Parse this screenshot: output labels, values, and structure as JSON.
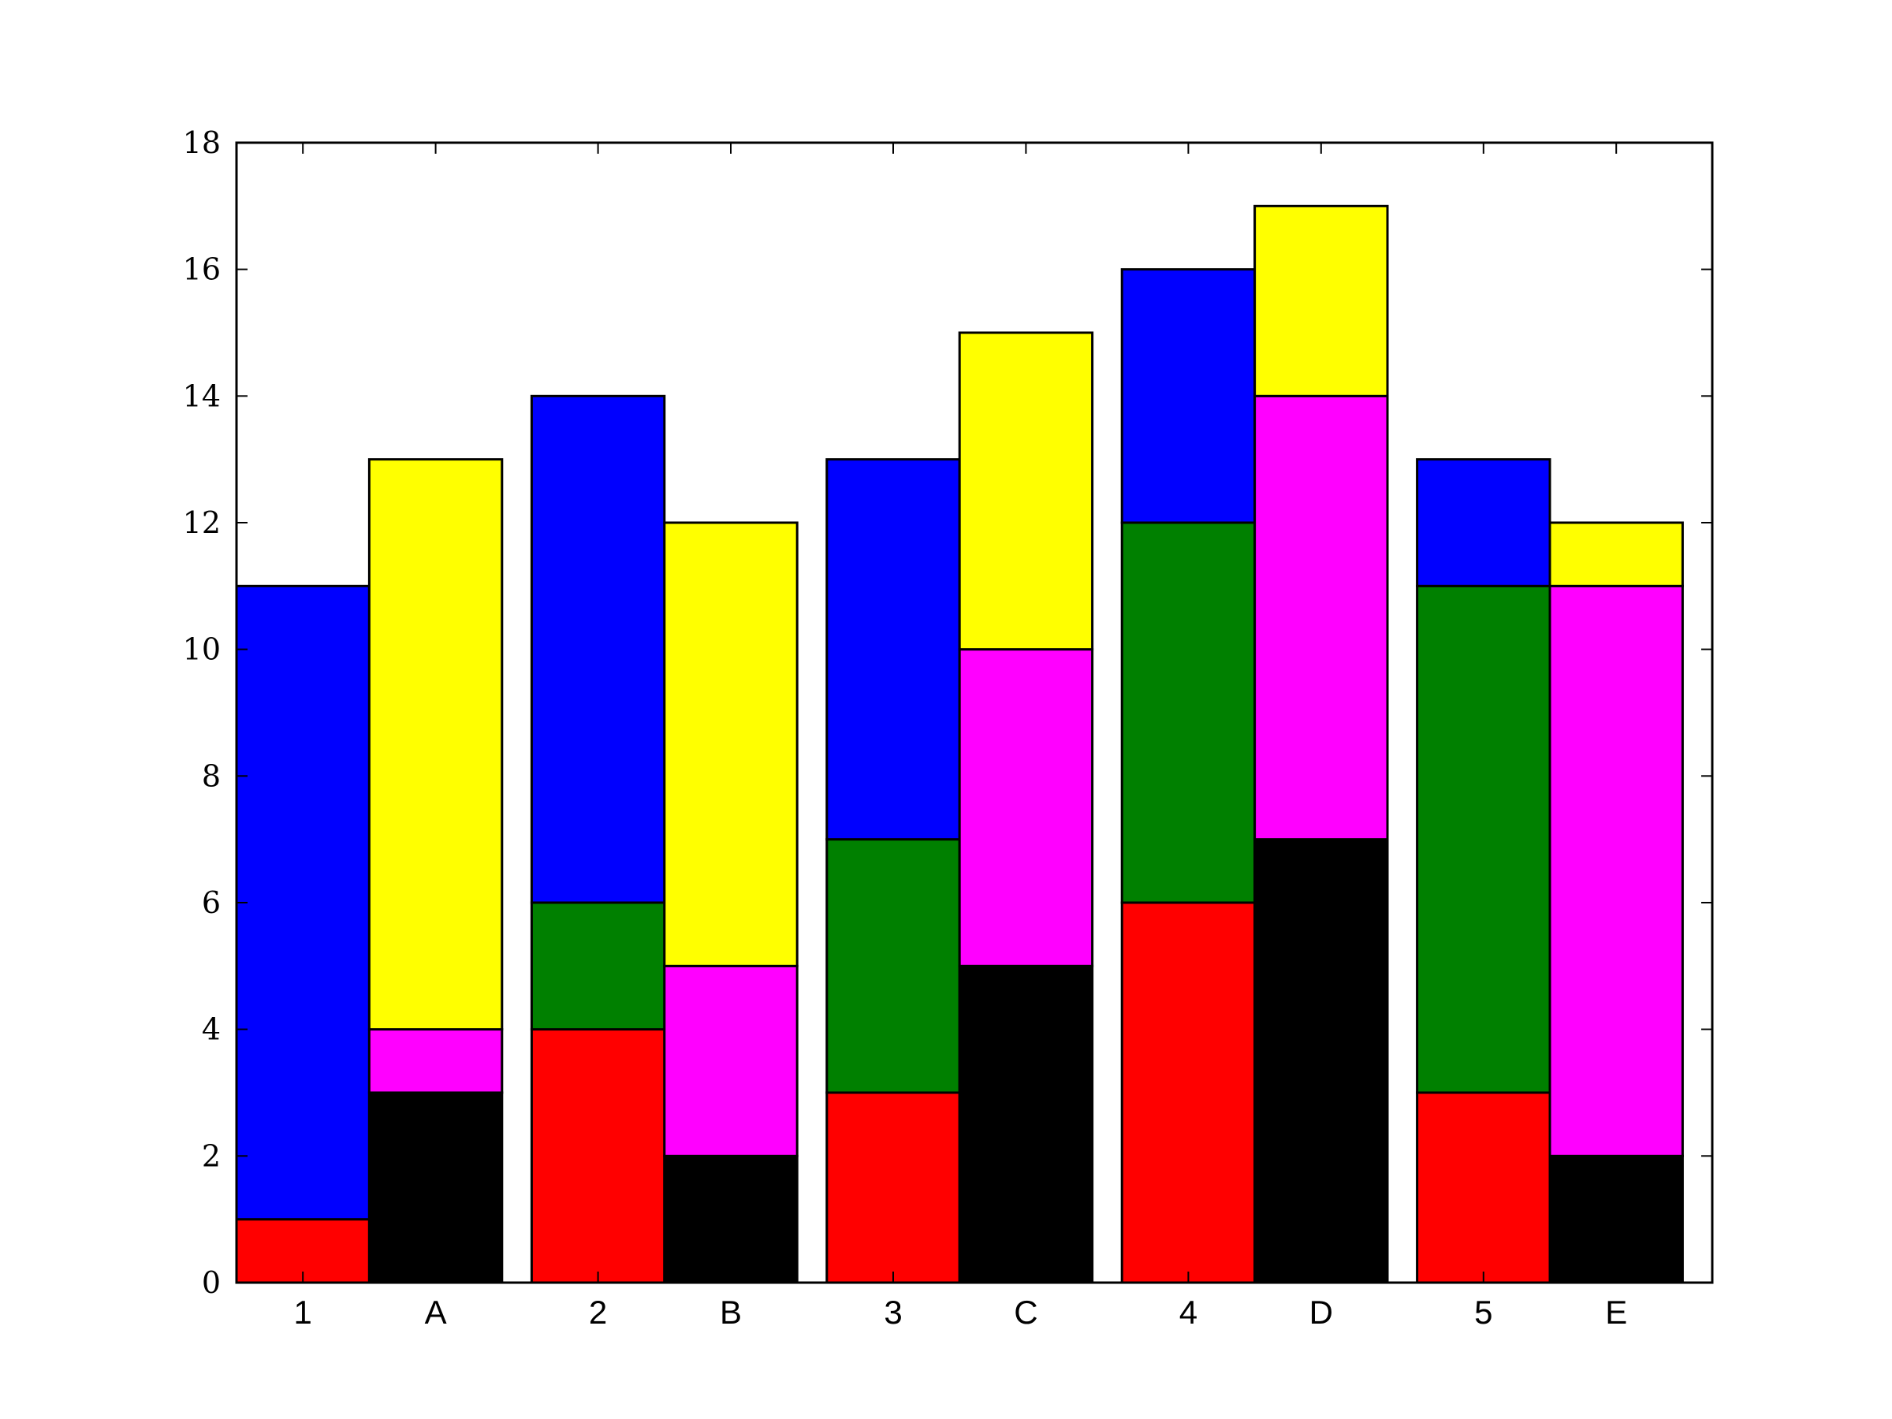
{
  "chart_data": {
    "type": "bar",
    "stacked": true,
    "title": "",
    "xlabel": "",
    "ylabel": "",
    "ylim": [
      0,
      18
    ],
    "yticks": [
      0,
      2,
      4,
      6,
      8,
      10,
      12,
      14,
      16,
      18
    ],
    "grid": false,
    "legend": "none",
    "groups": [
      {
        "numeric_label": "1",
        "letter_label": "A"
      },
      {
        "numeric_label": "2",
        "letter_label": "B"
      },
      {
        "numeric_label": "3",
        "letter_label": "C"
      },
      {
        "numeric_label": "4",
        "letter_label": "D"
      },
      {
        "numeric_label": "5",
        "letter_label": "E"
      }
    ],
    "numeric_bars": {
      "categories": [
        "1",
        "2",
        "3",
        "4",
        "5"
      ],
      "series": [
        {
          "color": "#ff0000",
          "values": [
            1,
            4,
            3,
            6,
            3
          ]
        },
        {
          "color": "#008000",
          "values": [
            0,
            2,
            4,
            6,
            8
          ]
        },
        {
          "color": "#0000ff",
          "values": [
            10,
            8,
            6,
            4,
            2
          ]
        }
      ],
      "totals": [
        11,
        14,
        13,
        16,
        13
      ]
    },
    "letter_bars": {
      "categories": [
        "A",
        "B",
        "C",
        "D",
        "E"
      ],
      "series": [
        {
          "color": "#000000",
          "values": [
            3,
            2,
            5,
            7,
            2
          ]
        },
        {
          "color": "#ff00ff",
          "values": [
            1,
            3,
            5,
            7,
            9
          ]
        },
        {
          "color": "#ffff00",
          "values": [
            9,
            7,
            5,
            3,
            1
          ]
        }
      ],
      "totals": [
        13,
        12,
        15,
        17,
        12
      ]
    }
  }
}
